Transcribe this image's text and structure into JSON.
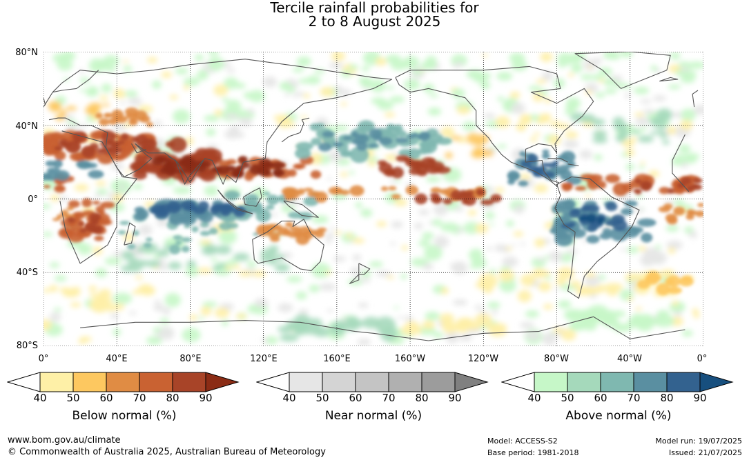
{
  "title": {
    "line1": "Tercile rainfall probabilities for",
    "line2": "2 to 8 August 2025"
  },
  "map": {
    "lat_labels": [
      "80°N",
      "40°N",
      "0°",
      "40°S",
      "80°S"
    ],
    "lon_labels": [
      "0°",
      "40°E",
      "80°E",
      "120°E",
      "160°E",
      "160°W",
      "120°W",
      "80°W",
      "40°W",
      "0°"
    ],
    "background_color": "#ffffff",
    "coastline_color": "#555555"
  },
  "colorbars": [
    {
      "title": "Below normal (%)",
      "ticks": [
        "40",
        "50",
        "60",
        "70",
        "80",
        "90"
      ],
      "colors": [
        "#fef0a7",
        "#fdc860",
        "#e08c44",
        "#c96232",
        "#a84428",
        "#8b2c15"
      ]
    },
    {
      "title": "Near normal (%)",
      "ticks": [
        "40",
        "50",
        "60",
        "70",
        "80",
        "90"
      ],
      "colors": [
        "#e6e6e6",
        "#d4d4d4",
        "#c4c4c4",
        "#b0b0b0",
        "#9c9c9c",
        "#808080"
      ]
    },
    {
      "title": "Above normal (%)",
      "ticks": [
        "40",
        "50",
        "60",
        "70",
        "80",
        "90"
      ],
      "colors": [
        "#c6f7c8",
        "#a5d9bb",
        "#7fb8b0",
        "#5a8fa1",
        "#33628f",
        "#174f7e"
      ]
    }
  ],
  "footer": {
    "website": "www.bom.gov.au/climate",
    "copyright": "© Commonwealth of Australia 2025, Australian Bureau of Meteorology",
    "model": "Model: ACCESS-S2",
    "base_period": "Base period: 1981-2018",
    "model_run": "Model run: 19/07/2025",
    "issued": "Issued: 21/07/2025"
  }
}
